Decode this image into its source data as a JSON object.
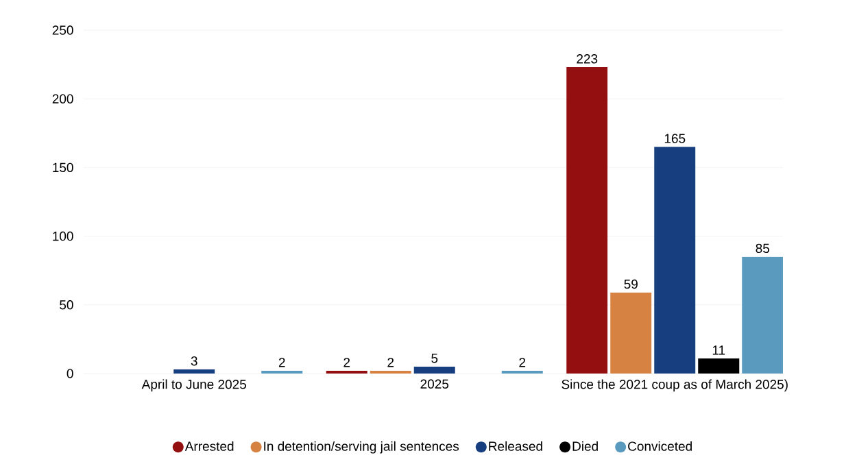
{
  "chart_data": {
    "type": "bar",
    "categories": [
      "April to June 2025",
      "2025",
      "Since the 2021 coup as of March 2025)"
    ],
    "series": [
      {
        "name": "Arrested",
        "color": "#941010",
        "values": [
          null,
          2,
          223
        ]
      },
      {
        "name": "In detention/serving jail sentences",
        "color": "#d58242",
        "values": [
          null,
          2,
          59
        ]
      },
      {
        "name": "Released",
        "color": "#173f80",
        "values": [
          3,
          5,
          165
        ]
      },
      {
        "name": "Died",
        "color": "#000000",
        "values": [
          null,
          null,
          11
        ]
      },
      {
        "name": "Conviceted",
        "color": "#5b9abf",
        "values": [
          2,
          2,
          85
        ]
      }
    ],
    "ylim": [
      0,
      250
    ],
    "yticks": [
      0,
      50,
      100,
      150,
      200,
      250
    ],
    "grid": "y",
    "legend": "bottom",
    "data_labels": true
  }
}
